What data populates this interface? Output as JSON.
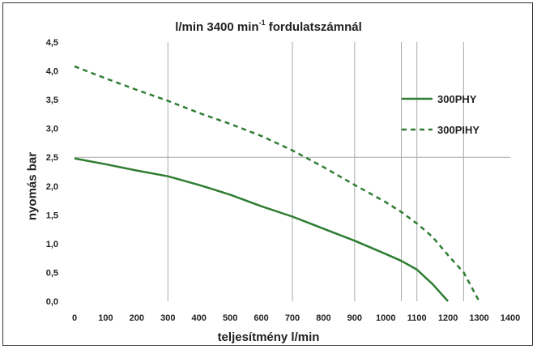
{
  "chart_data": {
    "type": "line",
    "title_main": "l/min 3400 min",
    "title_sup": "-1",
    "title_tail": " fordulatszámnál",
    "xlabel": "teljesítmény l/min",
    "ylabel": "nyomás bar",
    "xlim": [
      0,
      1400
    ],
    "ylim": [
      0,
      4.5
    ],
    "x_ticks": [
      "0",
      "100",
      "200",
      "300",
      "400",
      "500",
      "600",
      "700",
      "800",
      "900",
      "1000",
      "1100",
      "1200",
      "1300",
      "1400"
    ],
    "y_ticks": [
      "0,0",
      "0,5",
      "1,0",
      "1,5",
      "2,0",
      "2,5",
      "3,0",
      "3,5",
      "4,0",
      "4,5"
    ],
    "vertical_gridlines_at": [
      300,
      700,
      900,
      1050,
      1100,
      1250
    ],
    "horizontal_gridlines_at": [
      2.5
    ],
    "legend_position": "right",
    "series": [
      {
        "name": "300PHY",
        "color": "#2e7d32",
        "style": "solid",
        "x": [
          0,
          100,
          200,
          300,
          400,
          500,
          600,
          700,
          800,
          900,
          1000,
          1050,
          1100,
          1150,
          1200
        ],
        "y": [
          2.48,
          2.38,
          2.27,
          2.17,
          2.02,
          1.85,
          1.65,
          1.47,
          1.26,
          1.05,
          0.82,
          0.7,
          0.55,
          0.3,
          0.0
        ]
      },
      {
        "name": "300PIHY",
        "color": "#2e7d32",
        "style": "dashed",
        "x": [
          0,
          100,
          200,
          300,
          400,
          500,
          600,
          700,
          800,
          900,
          1000,
          1050,
          1100,
          1150,
          1200,
          1250,
          1300
        ],
        "y": [
          4.08,
          3.87,
          3.67,
          3.48,
          3.27,
          3.08,
          2.87,
          2.62,
          2.33,
          2.02,
          1.72,
          1.55,
          1.35,
          1.12,
          0.8,
          0.5,
          0.0
        ]
      }
    ]
  }
}
